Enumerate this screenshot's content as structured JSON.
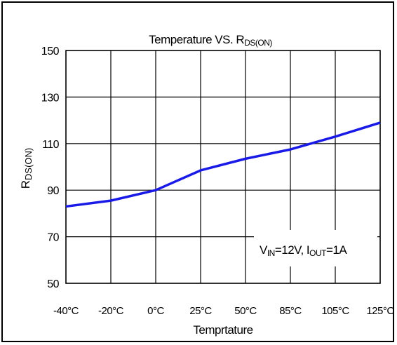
{
  "chart_data": {
    "type": "line",
    "title": "Temperature VS. R",
    "title_sub": "DS(ON)",
    "xlabel": "Temprtature",
    "ylabel_main": "R",
    "ylabel_sub": "DS(ON)",
    "categories": [
      "-40°C",
      "-20°C",
      "0°C",
      "25°C",
      "50°C",
      "85°C",
      "105°C",
      "125°C"
    ],
    "y_ticks": [
      "150",
      "130",
      "110",
      "90",
      "70",
      "50"
    ],
    "ylim": [
      50,
      150
    ],
    "grid": true,
    "series": [
      {
        "values": [
          83,
          85.5,
          90,
          98.5,
          103.5,
          107.5,
          113,
          119
        ],
        "color": "#1a1ae6"
      }
    ],
    "annotation": {
      "v_main": "V",
      "v_sub": "IN",
      "v_rest": "=12V, I",
      "i_sub": "OUT",
      "i_rest": "=1A"
    }
  }
}
